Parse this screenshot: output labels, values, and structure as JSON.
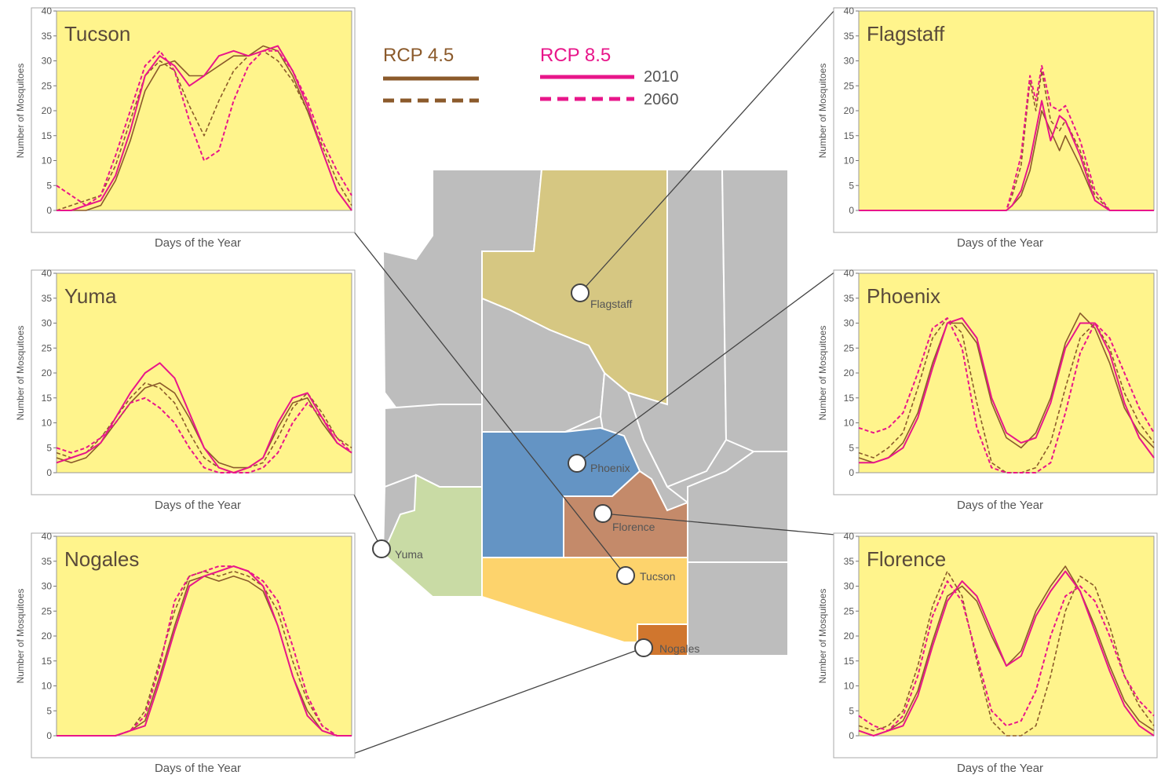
{
  "legend": {
    "rcp45": {
      "label": "RCP 4.5",
      "color": "#8B5A2B"
    },
    "rcp85": {
      "label": "RCP 8.5",
      "color": "#E8168A"
    },
    "year_solid": "2010",
    "year_dashed": "2060"
  },
  "map_labels": {
    "flagstaff": "Flagstaff",
    "phoenix": "Phoenix",
    "florence": "Florence",
    "tucson": "Tucson",
    "yuma": "Yuma",
    "nogales": "Nogales"
  },
  "colors": {
    "panel_bg": "#FFF48C",
    "map_gray": "#BDBDBD",
    "coconino": "#D6C782",
    "maricopa": "#6494C4",
    "pinal": "#C48A6A",
    "pima": "#FDD36C",
    "yuma_county": "#C9DBA5",
    "santa_cruz": "#D0762E"
  },
  "chart_data": [
    {
      "type": "line",
      "title": "Tucson",
      "xlabel": "Days of the Year",
      "ylabel": "Number of Mosquitoes",
      "ylim": [
        0,
        40
      ],
      "yticks": [
        0,
        5,
        10,
        15,
        20,
        25,
        30,
        35,
        40
      ],
      "x": [
        0,
        0.05,
        0.1,
        0.15,
        0.2,
        0.25,
        0.3,
        0.35,
        0.4,
        0.45,
        0.5,
        0.55,
        0.6,
        0.65,
        0.7,
        0.75,
        0.8,
        0.85,
        0.9,
        0.95,
        1
      ],
      "series": [
        {
          "name": "RCP 4.5 2010",
          "values": [
            0,
            0,
            0,
            1,
            6,
            14,
            24,
            29,
            30,
            27,
            27,
            29,
            31,
            31,
            33,
            32,
            27,
            20,
            12,
            4,
            0
          ]
        },
        {
          "name": "RCP 4.5 2060",
          "values": [
            0,
            1,
            2,
            3,
            9,
            18,
            27,
            30,
            28,
            21,
            15,
            22,
            28,
            31,
            32,
            30,
            26,
            20,
            13,
            6,
            1
          ]
        },
        {
          "name": "RCP 8.5 2010",
          "values": [
            0,
            0,
            1,
            2,
            7,
            16,
            27,
            31,
            29,
            25,
            27,
            31,
            32,
            31,
            32,
            33,
            28,
            21,
            12,
            4,
            0
          ]
        },
        {
          "name": "RCP 8.5 2060",
          "values": [
            5,
            3,
            1,
            3,
            11,
            20,
            29,
            32,
            28,
            18,
            10,
            12,
            22,
            29,
            32,
            32,
            28,
            22,
            14,
            8,
            3
          ]
        }
      ]
    },
    {
      "type": "line",
      "title": "Yuma",
      "xlabel": "Days of the Year",
      "ylabel": "Number of Mosquitoes",
      "ylim": [
        0,
        40
      ],
      "yticks": [
        0,
        5,
        10,
        15,
        20,
        25,
        30,
        35,
        40
      ],
      "x": [
        0,
        0.05,
        0.1,
        0.15,
        0.2,
        0.25,
        0.3,
        0.35,
        0.4,
        0.45,
        0.5,
        0.55,
        0.6,
        0.65,
        0.7,
        0.75,
        0.8,
        0.85,
        0.9,
        0.95,
        1
      ],
      "series": [
        {
          "name": "RCP 4.5 2010",
          "values": [
            3,
            2,
            3,
            6,
            10,
            14,
            17,
            18,
            16,
            11,
            5,
            2,
            1,
            1,
            3,
            9,
            14,
            15,
            10,
            6,
            4
          ]
        },
        {
          "name": "RCP 4.5 2060",
          "values": [
            4,
            3,
            4,
            7,
            11,
            15,
            18,
            17,
            14,
            8,
            3,
            1,
            0,
            1,
            2,
            7,
            13,
            16,
            12,
            7,
            5
          ]
        },
        {
          "name": "RCP 8.5 2010",
          "values": [
            2,
            3,
            4,
            6,
            11,
            16,
            20,
            22,
            19,
            12,
            5,
            1,
            0,
            1,
            3,
            10,
            15,
            16,
            11,
            6,
            4
          ]
        },
        {
          "name": "RCP 8.5 2060",
          "values": [
            5,
            4,
            5,
            7,
            10,
            14,
            15,
            13,
            10,
            5,
            1,
            0,
            0,
            0,
            1,
            4,
            10,
            14,
            11,
            7,
            4
          ]
        }
      ]
    },
    {
      "type": "line",
      "title": "Nogales",
      "xlabel": "Days of the Year",
      "ylabel": "Number of Mosquitoes",
      "ylim": [
        0,
        40
      ],
      "yticks": [
        0,
        5,
        10,
        15,
        20,
        25,
        30,
        35,
        40
      ],
      "x": [
        0,
        0.05,
        0.1,
        0.15,
        0.2,
        0.25,
        0.3,
        0.35,
        0.4,
        0.45,
        0.5,
        0.55,
        0.6,
        0.65,
        0.7,
        0.75,
        0.8,
        0.85,
        0.9,
        0.95,
        1
      ],
      "series": [
        {
          "name": "RCP 4.5 2010",
          "values": [
            0,
            0,
            0,
            0,
            0,
            1,
            3,
            12,
            22,
            31,
            32,
            31,
            32,
            31,
            29,
            22,
            12,
            5,
            1,
            0,
            0
          ]
        },
        {
          "name": "RCP 4.5 2060",
          "values": [
            0,
            0,
            0,
            0,
            0,
            1,
            5,
            15,
            25,
            32,
            33,
            32,
            33,
            32,
            30,
            25,
            15,
            7,
            2,
            0,
            0
          ]
        },
        {
          "name": "RCP 8.5 2010",
          "values": [
            0,
            0,
            0,
            0,
            0,
            1,
            2,
            11,
            21,
            30,
            32,
            33,
            34,
            33,
            30,
            22,
            12,
            4,
            1,
            0,
            0
          ]
        },
        {
          "name": "RCP 8.5 2060",
          "values": [
            0,
            0,
            0,
            0,
            0,
            1,
            4,
            14,
            27,
            32,
            33,
            34,
            34,
            33,
            31,
            27,
            18,
            8,
            2,
            0,
            0
          ]
        }
      ]
    },
    {
      "type": "line",
      "title": "Flagstaff",
      "xlabel": "Days of the Year",
      "ylabel": "Number of Mosquitoes",
      "ylim": [
        0,
        40
      ],
      "yticks": [
        0,
        5,
        10,
        15,
        20,
        25,
        30,
        35,
        40
      ],
      "x": [
        0,
        0.05,
        0.1,
        0.15,
        0.2,
        0.25,
        0.3,
        0.35,
        0.4,
        0.45,
        0.5,
        0.52,
        0.55,
        0.58,
        0.6,
        0.62,
        0.65,
        0.68,
        0.7,
        0.75,
        0.8,
        0.85,
        0.9,
        0.95,
        1
      ],
      "series": [
        {
          "name": "RCP 4.5 2010",
          "values": [
            0,
            0,
            0,
            0,
            0,
            0,
            0,
            0,
            0,
            0,
            0,
            1,
            3,
            8,
            14,
            20,
            16,
            12,
            15,
            9,
            2,
            0,
            0,
            0,
            0
          ]
        },
        {
          "name": "RCP 4.5 2060",
          "values": [
            0,
            0,
            0,
            0,
            0,
            0,
            0,
            0,
            0,
            0,
            0,
            3,
            9,
            26,
            20,
            28,
            18,
            16,
            18,
            12,
            3,
            0,
            0,
            0,
            0
          ]
        },
        {
          "name": "RCP 8.5 2010",
          "values": [
            0,
            0,
            0,
            0,
            0,
            0,
            0,
            0,
            0,
            0,
            0,
            1,
            4,
            10,
            16,
            22,
            14,
            19,
            18,
            11,
            2,
            0,
            0,
            0,
            0
          ]
        },
        {
          "name": "RCP 8.5 2060",
          "values": [
            0,
            0,
            0,
            0,
            0,
            0,
            0,
            0,
            0,
            0,
            0,
            4,
            11,
            27,
            22,
            29,
            21,
            20,
            21,
            14,
            4,
            0,
            0,
            0,
            0
          ]
        }
      ]
    },
    {
      "type": "line",
      "title": "Phoenix",
      "xlabel": "Days of the Year",
      "ylabel": "Number of Mosquitoes",
      "ylim": [
        0,
        40
      ],
      "yticks": [
        0,
        5,
        10,
        15,
        20,
        25,
        30,
        35,
        40
      ],
      "x": [
        0,
        0.05,
        0.1,
        0.15,
        0.2,
        0.25,
        0.3,
        0.35,
        0.4,
        0.45,
        0.5,
        0.55,
        0.6,
        0.65,
        0.7,
        0.75,
        0.8,
        0.85,
        0.9,
        0.95,
        1
      ],
      "series": [
        {
          "name": "RCP 4.5 2010",
          "values": [
            3,
            2,
            3,
            6,
            12,
            22,
            30,
            30,
            26,
            14,
            7,
            5,
            8,
            15,
            26,
            32,
            29,
            22,
            13,
            8,
            5
          ]
        },
        {
          "name": "RCP 4.5 2060",
          "values": [
            4,
            3,
            5,
            8,
            17,
            27,
            31,
            28,
            14,
            2,
            0,
            0,
            1,
            6,
            17,
            27,
            30,
            25,
            16,
            10,
            6
          ]
        },
        {
          "name": "RCP 8.5 2010",
          "values": [
            2,
            2,
            3,
            5,
            11,
            21,
            30,
            31,
            27,
            15,
            8,
            6,
            7,
            14,
            25,
            30,
            30,
            24,
            14,
            7,
            3
          ]
        },
        {
          "name": "RCP 8.5 2060",
          "values": [
            9,
            8,
            9,
            12,
            20,
            29,
            31,
            25,
            9,
            1,
            0,
            0,
            0,
            2,
            12,
            24,
            30,
            27,
            20,
            13,
            8
          ]
        }
      ]
    },
    {
      "type": "line",
      "title": "Florence",
      "xlabel": "Days of the Year",
      "ylabel": "Number of Mosquitoes",
      "ylim": [
        0,
        40
      ],
      "yticks": [
        0,
        5,
        10,
        15,
        20,
        25,
        30,
        35,
        40
      ],
      "x": [
        0,
        0.05,
        0.1,
        0.15,
        0.2,
        0.25,
        0.3,
        0.35,
        0.4,
        0.45,
        0.5,
        0.55,
        0.6,
        0.65,
        0.7,
        0.75,
        0.8,
        0.85,
        0.9,
        0.95,
        1
      ],
      "series": [
        {
          "name": "RCP 4.5 2010",
          "values": [
            1,
            0,
            1,
            3,
            9,
            19,
            28,
            30,
            27,
            20,
            14,
            17,
            25,
            30,
            34,
            29,
            22,
            14,
            7,
            3,
            1
          ]
        },
        {
          "name": "RCP 4.5 2060",
          "values": [
            2,
            1,
            2,
            5,
            14,
            26,
            33,
            28,
            15,
            3,
            0,
            0,
            2,
            12,
            25,
            32,
            30,
            22,
            12,
            6,
            2
          ]
        },
        {
          "name": "RCP 8.5 2010",
          "values": [
            1,
            0,
            1,
            2,
            8,
            18,
            27,
            31,
            28,
            21,
            14,
            16,
            24,
            29,
            33,
            29,
            21,
            13,
            6,
            2,
            0
          ]
        },
        {
          "name": "RCP 8.5 2060",
          "values": [
            4,
            2,
            1,
            4,
            12,
            24,
            31,
            27,
            16,
            5,
            2,
            3,
            9,
            20,
            28,
            30,
            27,
            20,
            12,
            7,
            4
          ]
        }
      ]
    }
  ]
}
